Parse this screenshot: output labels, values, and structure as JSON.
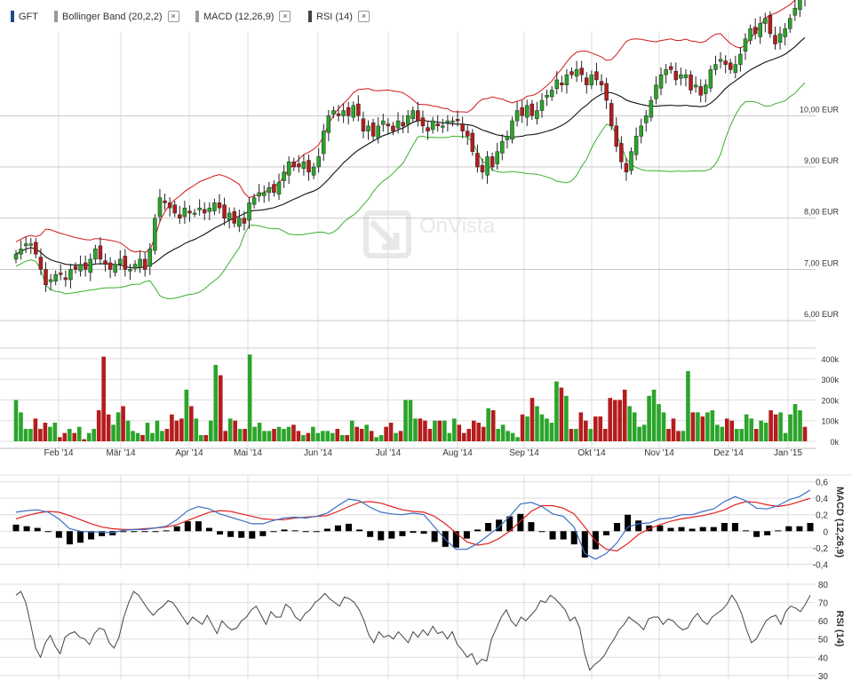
{
  "legend": {
    "items": [
      {
        "label": "GFT",
        "color": "#1c4e8c",
        "closable": false
      },
      {
        "label": "Bollinger Band (20,2,2)",
        "color": "#999999",
        "closable": true
      },
      {
        "label": "MACD (12,26,9)",
        "color": "#999999",
        "closable": true
      },
      {
        "label": "RSI (14)",
        "color": "#444444",
        "closable": true
      }
    ],
    "close_glyph": "×"
  },
  "watermark": "OnVista",
  "colors": {
    "up": "#2aa52a",
    "down": "#b51c1c",
    "upper_band": "#d0191c",
    "lower_band": "#3ab02c",
    "middle_band": "#111111",
    "macd": "#3a6fc4",
    "signal": "#e02020",
    "histogram": "#000000",
    "rsi": "#444444",
    "grid": "#dddddd"
  },
  "chart_data": [
    {
      "type": "candlestick",
      "title": "",
      "series_name": "GFT",
      "ylabel": "",
      "ylim": [
        5.5,
        11.6
      ],
      "y_ticks": [
        {
          "value": 10.0,
          "label": "10,00 EUR"
        },
        {
          "value": 9.0,
          "label": "9,00 EUR"
        },
        {
          "value": 8.0,
          "label": "8,00 EUR"
        },
        {
          "value": 7.0,
          "label": "7,00 EUR"
        },
        {
          "value": 6.0,
          "label": "6,00 EUR"
        }
      ],
      "x_labels": [
        "Feb '14",
        "Mär '14",
        "Apr '14",
        "Mai '14",
        "Jun '14",
        "Jul '14",
        "Aug '14",
        "Sep '14",
        "Okt '14",
        "Nov '14",
        "Dez '14",
        "Jan '15"
      ],
      "closes": [
        7.3,
        7.4,
        7.5,
        7.5,
        7.3,
        7.0,
        6.7,
        6.8,
        6.9,
        6.9,
        6.8,
        7.0,
        7.0,
        7.1,
        7.0,
        7.2,
        7.4,
        7.2,
        7.1,
        7.0,
        7.1,
        7.2,
        7.0,
        7.0,
        7.1,
        7.2,
        7.0,
        7.4,
        8.0,
        8.4,
        8.3,
        8.2,
        8.1,
        8.0,
        8.2,
        8.1,
        8.1,
        8.2,
        8.1,
        8.2,
        8.3,
        8.2,
        8.0,
        8.1,
        7.9,
        8.0,
        7.9,
        8.3,
        8.4,
        8.5,
        8.5,
        8.6,
        8.5,
        8.7,
        8.9,
        9.1,
        9.0,
        9.0,
        9.1,
        8.9,
        9.0,
        9.2,
        9.7,
        10.0,
        10.1,
        10.0,
        10.1,
        10.0,
        10.2,
        10.0,
        9.7,
        9.8,
        9.6,
        9.8,
        9.9,
        9.8,
        9.7,
        9.9,
        9.8,
        10.0,
        10.1,
        9.9,
        9.8,
        9.7,
        9.9,
        9.8,
        9.8,
        9.9,
        9.9,
        9.9,
        9.7,
        9.6,
        9.3,
        9.0,
        8.9,
        9.2,
        9.0,
        9.3,
        9.5,
        9.6,
        9.9,
        10.1,
        10.0,
        10.2,
        10.0,
        10.1,
        10.3,
        10.4,
        10.5,
        10.7,
        10.6,
        10.8,
        10.8,
        10.9,
        10.8,
        10.6,
        10.8,
        10.7,
        10.6,
        10.3,
        9.8,
        9.4,
        9.1,
        8.9,
        9.3,
        9.6,
        9.8,
        10.0,
        10.3,
        10.6,
        10.8,
        10.9,
        10.9,
        10.7,
        10.8,
        10.8,
        10.5,
        10.6,
        10.4,
        10.6,
        10.9,
        11.0,
        11.1,
        11.0,
        10.9,
        11.0,
        11.2,
        11.5,
        11.7,
        11.6,
        11.8,
        11.9,
        11.6,
        11.4,
        11.6,
        11.7,
        11.9,
        12.1,
        12.3,
        12.3
      ]
    },
    {
      "type": "bar",
      "title": "",
      "series_name": "",
      "ylim": [
        0,
        430000
      ],
      "y_ticks": [
        {
          "value": 0,
          "label": "0k"
        },
        {
          "value": 100000,
          "label": "100k"
        },
        {
          "value": 200000,
          "label": "200k"
        },
        {
          "value": 300000,
          "label": "300k"
        },
        {
          "value": 400000,
          "label": "400k"
        }
      ],
      "note": "bar colour follows the candle direction",
      "values": [
        200000,
        140000,
        60000,
        60000,
        110000,
        60000,
        90000,
        70000,
        90000,
        20000,
        40000,
        60000,
        40000,
        70000,
        10000,
        40000,
        60000,
        150000,
        410000,
        130000,
        80000,
        140000,
        170000,
        100000,
        50000,
        40000,
        30000,
        90000,
        40000,
        100000,
        50000,
        60000,
        130000,
        100000,
        110000,
        250000,
        170000,
        110000,
        30000,
        30000,
        100000,
        370000,
        320000,
        50000,
        110000,
        100000,
        60000,
        60000,
        420000,
        70000,
        90000,
        50000,
        50000,
        60000,
        70000,
        60000,
        70000,
        80000,
        50000,
        30000,
        40000,
        70000,
        40000,
        50000,
        50000,
        40000,
        60000,
        30000,
        30000,
        100000,
        70000,
        60000,
        80000,
        50000,
        20000,
        30000,
        70000,
        90000,
        40000,
        50000,
        200000,
        200000,
        110000,
        110000,
        100000,
        60000,
        100000,
        100000,
        100000,
        40000,
        110000,
        80000,
        40000,
        60000,
        100000,
        90000,
        70000,
        160000,
        150000,
        60000,
        80000,
        50000,
        40000,
        20000,
        130000,
        120000,
        210000,
        170000,
        130000,
        110000,
        90000,
        290000,
        260000,
        220000,
        60000,
        60000,
        140000,
        100000,
        60000,
        120000,
        120000,
        60000,
        210000,
        200000,
        200000,
        250000,
        170000,
        140000,
        70000,
        80000,
        220000,
        250000,
        180000,
        140000,
        60000,
        110000,
        50000,
        50000,
        340000,
        140000,
        140000,
        120000,
        140000,
        150000,
        80000,
        70000,
        110000,
        100000,
        60000,
        60000,
        130000,
        110000,
        60000,
        100000,
        90000,
        150000,
        130000,
        140000,
        40000,
        130000,
        180000,
        150000,
        70000
      ]
    },
    {
      "type": "line",
      "title": "",
      "ylabel": "MACD (12,26,9)",
      "ylim": [
        -0.45,
        0.65
      ],
      "y_ticks": [
        {
          "value": 0.6,
          "label": "0,6"
        },
        {
          "value": 0.4,
          "label": "0,4"
        },
        {
          "value": 0.2,
          "label": "0,2"
        },
        {
          "value": 0,
          "label": "0"
        },
        {
          "value": -0.2,
          "label": "-0,2"
        },
        {
          "value": -0.4,
          "label": "-0,4"
        }
      ],
      "series": [
        {
          "name": "",
          "kind": "macd",
          "values": [
            0.23,
            0.25,
            0.26,
            0.23,
            0.15,
            0.03,
            0.0,
            -0.01,
            -0.01,
            -0.02,
            0.01,
            0.02,
            0.02,
            0.04,
            0.06,
            0.14,
            0.25,
            0.3,
            0.27,
            0.21,
            0.17,
            0.13,
            0.09,
            0.09,
            0.13,
            0.16,
            0.17,
            0.16,
            0.18,
            0.22,
            0.31,
            0.39,
            0.37,
            0.29,
            0.23,
            0.21,
            0.2,
            0.22,
            0.2,
            0.05,
            -0.1,
            -0.22,
            -0.22,
            -0.15,
            -0.05,
            0.05,
            0.18,
            0.33,
            0.35,
            0.3,
            0.21,
            0.18,
            0.05,
            -0.27,
            -0.34,
            -0.27,
            -0.14,
            0.05,
            0.09,
            0.1,
            0.15,
            0.16,
            0.2,
            0.2,
            0.24,
            0.27,
            0.36,
            0.42,
            0.37,
            0.28,
            0.27,
            0.31,
            0.38,
            0.42,
            0.5
          ]
        },
        {
          "name": "",
          "kind": "signal",
          "values": [
            0.15,
            0.19,
            0.22,
            0.24,
            0.23,
            0.19,
            0.14,
            0.09,
            0.05,
            0.03,
            0.02,
            0.02,
            0.03,
            0.04,
            0.05,
            0.08,
            0.13,
            0.18,
            0.23,
            0.25,
            0.24,
            0.21,
            0.18,
            0.15,
            0.14,
            0.14,
            0.16,
            0.17,
            0.18,
            0.19,
            0.24,
            0.3,
            0.35,
            0.36,
            0.34,
            0.3,
            0.26,
            0.24,
            0.23,
            0.18,
            0.09,
            -0.02,
            -0.13,
            -0.17,
            -0.15,
            -0.09,
            0.0,
            0.12,
            0.24,
            0.31,
            0.31,
            0.28,
            0.21,
            0.05,
            -0.12,
            -0.22,
            -0.24,
            -0.15,
            -0.04,
            0.03,
            0.08,
            0.12,
            0.15,
            0.17,
            0.19,
            0.22,
            0.26,
            0.32,
            0.36,
            0.35,
            0.32,
            0.3,
            0.32,
            0.36,
            0.4
          ]
        },
        {
          "name": "",
          "kind": "histogram",
          "values": [
            0.08,
            0.06,
            0.04,
            -0.01,
            -0.08,
            -0.16,
            -0.14,
            -0.1,
            -0.06,
            -0.05,
            -0.01,
            0.0,
            -0.01,
            0.0,
            0.01,
            0.06,
            0.12,
            0.12,
            0.04,
            -0.04,
            -0.07,
            -0.08,
            -0.09,
            -0.06,
            -0.01,
            0.02,
            0.01,
            -0.01,
            0.0,
            0.03,
            0.07,
            0.09,
            0.02,
            -0.07,
            -0.11,
            -0.09,
            -0.06,
            -0.02,
            -0.03,
            -0.13,
            -0.19,
            -0.2,
            -0.09,
            0.02,
            0.1,
            0.14,
            0.18,
            0.21,
            0.11,
            -0.01,
            -0.1,
            -0.1,
            -0.16,
            -0.32,
            -0.22,
            -0.05,
            0.1,
            0.2,
            0.13,
            0.07,
            0.07,
            0.04,
            0.05,
            0.03,
            0.05,
            0.05,
            0.1,
            0.1,
            0.01,
            -0.07,
            -0.05,
            0.01,
            0.06,
            0.06,
            0.1
          ]
        }
      ]
    },
    {
      "type": "line",
      "title": "",
      "ylabel": "RSI (14)",
      "ylim": [
        28,
        80
      ],
      "y_ticks": [
        {
          "value": 80,
          "label": "80"
        },
        {
          "value": 70,
          "label": "70"
        },
        {
          "value": 60,
          "label": "60"
        },
        {
          "value": 50,
          "label": "50"
        },
        {
          "value": 40,
          "label": "40"
        },
        {
          "value": 30,
          "label": "30"
        }
      ],
      "values": [
        74,
        76,
        70,
        58,
        45,
        40,
        48,
        52,
        46,
        42,
        51,
        53,
        54,
        51,
        50,
        47,
        53,
        56,
        55,
        48,
        45,
        51,
        62,
        70,
        76,
        74,
        70,
        66,
        63,
        66,
        68,
        71,
        70,
        66,
        62,
        58,
        62,
        60,
        58,
        63,
        58,
        53,
        60,
        57,
        55,
        56,
        60,
        62,
        66,
        68,
        63,
        58,
        65,
        62,
        62,
        69,
        67,
        62,
        60,
        64,
        66,
        70,
        72,
        75,
        72,
        70,
        68,
        73,
        72,
        70,
        66,
        60,
        52,
        48,
        54,
        51,
        52,
        50,
        54,
        51,
        48,
        54,
        51,
        55,
        52,
        57,
        53,
        54,
        50,
        54,
        47,
        44,
        40,
        42,
        36,
        39,
        38,
        50,
        56,
        62,
        66,
        60,
        57,
        62,
        60,
        63,
        66,
        71,
        70,
        74,
        72,
        69,
        66,
        60,
        62,
        56,
        42,
        33,
        36,
        38,
        41,
        46,
        50,
        55,
        58,
        62,
        60,
        58,
        55,
        61,
        62,
        62,
        58,
        61,
        60,
        57,
        55,
        56,
        61,
        64,
        60,
        58,
        62,
        64,
        66,
        69,
        74,
        70,
        64,
        55,
        48,
        50,
        55,
        60,
        62,
        63,
        58,
        65,
        68,
        67,
        65,
        69,
        74
      ]
    }
  ]
}
